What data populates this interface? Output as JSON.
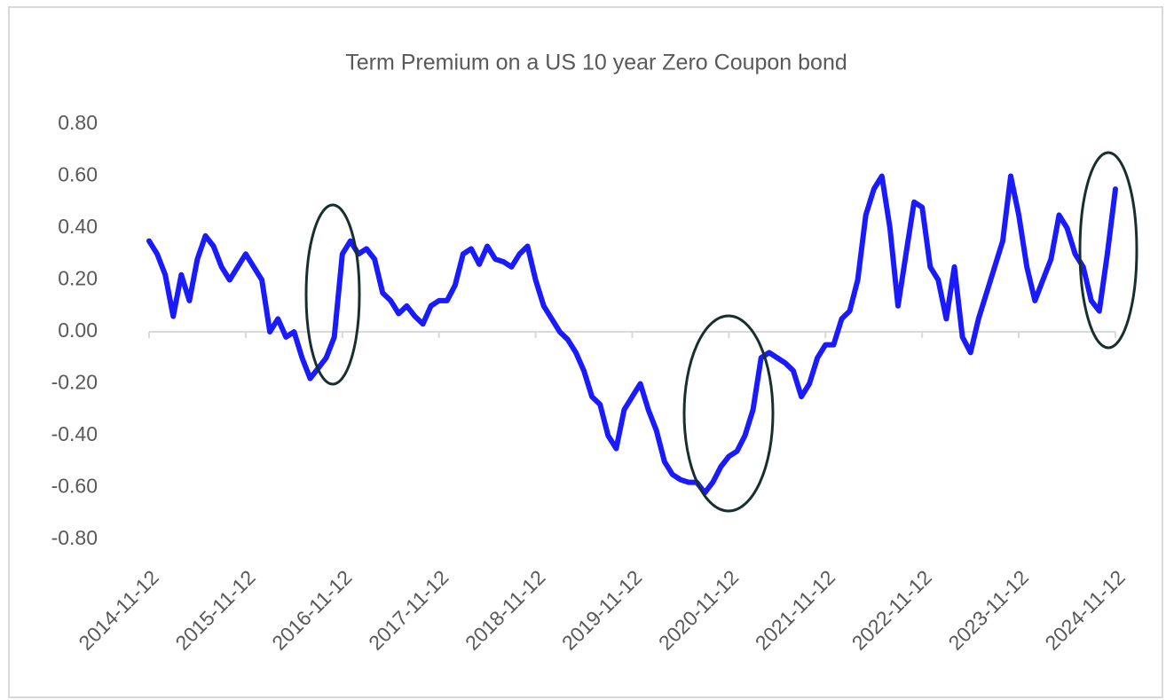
{
  "chart_data": {
    "type": "line",
    "title": "Term Premium on a US 10 year Zero Coupon bond",
    "categories": [
      "2014-11-12",
      null,
      null,
      null,
      null,
      null,
      null,
      null,
      null,
      null,
      null,
      null,
      "2015-11-12",
      null,
      null,
      null,
      null,
      null,
      null,
      null,
      null,
      null,
      null,
      null,
      "2016-11-12",
      null,
      null,
      null,
      null,
      null,
      null,
      null,
      null,
      null,
      null,
      null,
      "2017-11-12",
      null,
      null,
      null,
      null,
      null,
      null,
      null,
      null,
      null,
      null,
      null,
      "2018-11-12",
      null,
      null,
      null,
      null,
      null,
      null,
      null,
      null,
      null,
      null,
      null,
      "2019-11-12",
      null,
      null,
      null,
      null,
      null,
      null,
      null,
      null,
      null,
      null,
      null,
      "2020-11-12",
      null,
      null,
      null,
      null,
      null,
      null,
      null,
      null,
      null,
      null,
      null,
      "2021-11-12",
      null,
      null,
      null,
      null,
      null,
      null,
      null,
      null,
      null,
      null,
      null,
      "2022-11-12",
      null,
      null,
      null,
      null,
      null,
      null,
      null,
      null,
      null,
      null,
      null,
      "2023-11-12",
      null,
      null,
      null,
      null,
      null,
      null,
      null,
      null,
      null,
      null,
      null,
      "2024-11-12"
    ],
    "values": [
      0.35,
      0.3,
      0.22,
      0.06,
      0.22,
      0.12,
      0.28,
      0.37,
      0.33,
      0.25,
      0.2,
      0.25,
      0.3,
      0.25,
      0.2,
      0.0,
      0.05,
      -0.02,
      0.0,
      -0.1,
      -0.18,
      -0.14,
      -0.1,
      -0.02,
      0.3,
      0.35,
      0.3,
      0.32,
      0.28,
      0.15,
      0.12,
      0.07,
      0.1,
      0.06,
      0.03,
      0.1,
      0.12,
      0.12,
      0.18,
      0.3,
      0.32,
      0.26,
      0.33,
      0.28,
      0.27,
      0.25,
      0.3,
      0.33,
      0.2,
      0.1,
      0.05,
      0.0,
      -0.03,
      -0.08,
      -0.15,
      -0.25,
      -0.28,
      -0.4,
      -0.45,
      -0.3,
      -0.25,
      -0.2,
      -0.3,
      -0.38,
      -0.5,
      -0.55,
      -0.57,
      -0.58,
      -0.58,
      -0.62,
      -0.58,
      -0.52,
      -0.48,
      -0.46,
      -0.4,
      -0.3,
      -0.1,
      -0.08,
      -0.1,
      -0.12,
      -0.15,
      -0.25,
      -0.2,
      -0.1,
      -0.05,
      -0.05,
      0.05,
      0.08,
      0.2,
      0.45,
      0.55,
      0.6,
      0.4,
      0.1,
      0.3,
      0.5,
      0.48,
      0.25,
      0.2,
      0.05,
      0.25,
      -0.02,
      -0.08,
      0.05,
      0.15,
      0.25,
      0.35,
      0.6,
      0.45,
      0.25,
      0.12,
      0.2,
      0.28,
      0.45,
      0.4,
      0.3,
      0.25,
      0.12,
      0.08,
      0.3,
      0.55
    ],
    "color": "#1a1aff",
    "ylim": [
      -0.8,
      0.8
    ],
    "yticks": [
      {
        "value": -0.8,
        "label": "-0.80"
      },
      {
        "value": -0.6,
        "label": "-0.60"
      },
      {
        "value": -0.4,
        "label": "-0.40"
      },
      {
        "value": -0.2,
        "label": "-0.20"
      },
      {
        "value": 0,
        "label": "0.00"
      },
      {
        "value": 0.2,
        "label": "0.20"
      },
      {
        "value": 0.4,
        "label": "0.40"
      },
      {
        "value": 0.6,
        "label": "0.60"
      },
      {
        "value": 0.8,
        "label": "0.80"
      }
    ],
    "grid": false
  }
}
